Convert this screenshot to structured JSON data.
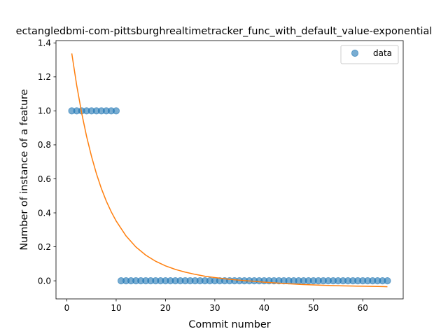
{
  "chart_data": {
    "type": "scatter",
    "title": "ectangledbmi-com-pittsburghrealtimetracker_func_with_default_value-exponential",
    "xlabel": "Commit number",
    "ylabel": "Number of instance of a feature",
    "xlim": [
      -2.2,
      68.2
    ],
    "ylim": [
      -0.1065,
      1.4135
    ],
    "xticks": [
      0,
      10,
      20,
      30,
      40,
      50,
      60
    ],
    "yticks": [
      0.0,
      0.2,
      0.4,
      0.6,
      0.8,
      1.0,
      1.2,
      1.4
    ],
    "xtick_labels": [
      "0",
      "10",
      "20",
      "30",
      "40",
      "50",
      "60"
    ],
    "ytick_labels": [
      "0.0",
      "0.2",
      "0.4",
      "0.6",
      "0.8",
      "1.0",
      "1.2",
      "1.4"
    ],
    "grid": false,
    "legend_position": "top-right",
    "series": [
      {
        "name": "data",
        "kind": "scatter",
        "color": "#1f77b4",
        "x": [
          1,
          2,
          3,
          4,
          5,
          6,
          7,
          8,
          9,
          10,
          11,
          12,
          13,
          14,
          15,
          16,
          17,
          18,
          19,
          20,
          21,
          22,
          23,
          24,
          25,
          26,
          27,
          28,
          29,
          30,
          31,
          32,
          33,
          34,
          35,
          36,
          37,
          38,
          39,
          40,
          41,
          42,
          43,
          44,
          45,
          46,
          47,
          48,
          49,
          50,
          51,
          52,
          53,
          54,
          55,
          56,
          57,
          58,
          59,
          60,
          61,
          62,
          63,
          64,
          65
        ],
        "y": [
          1,
          1,
          1,
          1,
          1,
          1,
          1,
          1,
          1,
          1,
          0,
          0,
          0,
          0,
          0,
          0,
          0,
          0,
          0,
          0,
          0,
          0,
          0,
          0,
          0,
          0,
          0,
          0,
          0,
          0,
          0,
          0,
          0,
          0,
          0,
          0,
          0,
          0,
          0,
          0,
          0,
          0,
          0,
          0,
          0,
          0,
          0,
          0,
          0,
          0,
          0,
          0,
          0,
          0,
          0,
          0,
          0,
          0,
          0,
          0,
          0,
          0,
          0,
          0,
          0
        ]
      },
      {
        "kind": "line",
        "color": "#ff7f0e",
        "x": [
          1,
          2,
          3,
          4,
          5,
          6,
          7,
          8,
          9,
          10,
          12,
          14,
          16,
          18,
          20,
          22,
          24,
          26,
          28,
          30,
          32,
          34,
          36,
          38,
          40,
          42,
          44,
          46,
          48,
          50,
          52,
          54,
          56,
          58,
          60,
          62,
          64,
          65
        ],
        "y": [
          1.338,
          1.15,
          0.988,
          0.85,
          0.732,
          0.63,
          0.543,
          0.469,
          0.406,
          0.352,
          0.264,
          0.199,
          0.151,
          0.115,
          0.088,
          0.067,
          0.051,
          0.038,
          0.027,
          0.019,
          0.012,
          0.006,
          0.001,
          -0.003,
          -0.008,
          -0.012,
          -0.016,
          -0.019,
          -0.022,
          -0.024,
          -0.026,
          -0.028,
          -0.03,
          -0.031,
          -0.032,
          -0.033,
          -0.034,
          -0.035
        ]
      }
    ]
  }
}
